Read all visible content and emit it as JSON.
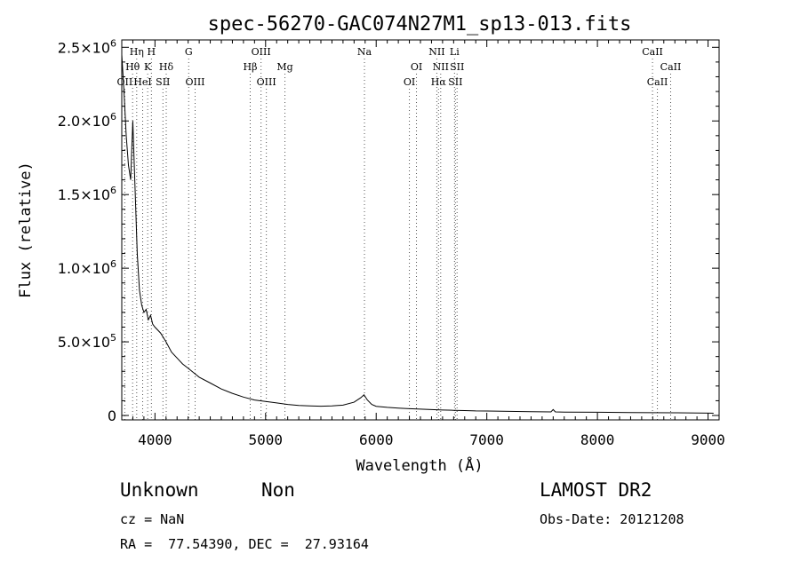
{
  "chart_data": {
    "type": "line",
    "title": "spec-56270-GAC074N27M1_sp13-013.fits",
    "xlabel": "Wavelength (Å)",
    "ylabel": "Flux (relative)",
    "xlim": [
      3700,
      9100
    ],
    "ylim": [
      -30000,
      2550000
    ],
    "xticks": [
      {
        "value": 4000,
        "label": "4000"
      },
      {
        "value": 5000,
        "label": "5000"
      },
      {
        "value": 6000,
        "label": "6000"
      },
      {
        "value": 7000,
        "label": "7000"
      },
      {
        "value": 8000,
        "label": "8000"
      },
      {
        "value": 9000,
        "label": "9000"
      }
    ],
    "yticks": [
      {
        "value": 0,
        "mant": "0",
        "exp": ""
      },
      {
        "value": 500000,
        "mant": "5.0×10",
        "exp": "5"
      },
      {
        "value": 1000000,
        "mant": "1.0×10",
        "exp": "6"
      },
      {
        "value": 1500000,
        "mant": "1.5×10",
        "exp": "6"
      },
      {
        "value": 2000000,
        "mant": "2.0×10",
        "exp": "6"
      },
      {
        "value": 2500000,
        "mant": "2.5×10",
        "exp": "6"
      }
    ],
    "grid": false,
    "series": [
      {
        "color": "#000000",
        "x": [
          3700,
          3720,
          3740,
          3760,
          3780,
          3800,
          3820,
          3840,
          3860,
          3880,
          3900,
          3920,
          3940,
          3960,
          3980,
          4000,
          4050,
          4100,
          4150,
          4200,
          4250,
          4300,
          4350,
          4400,
          4500,
          4600,
          4700,
          4800,
          4900,
          5000,
          5100,
          5200,
          5300,
          5400,
          5500,
          5600,
          5700,
          5800,
          5860,
          5890,
          5920,
          5960,
          6000,
          6100,
          6200,
          6300,
          6400,
          6500,
          6600,
          6700,
          6800,
          6900,
          7000,
          7200,
          7400,
          7580,
          7600,
          7620,
          7700,
          8000,
          8300,
          8500,
          8700,
          8900,
          9000,
          9050
        ],
        "y": [
          2450000,
          2200000,
          1900000,
          1700000,
          1600000,
          2000000,
          1550000,
          1100000,
          850000,
          750000,
          700000,
          720000,
          650000,
          680000,
          620000,
          600000,
          560000,
          500000,
          430000,
          390000,
          350000,
          320000,
          290000,
          260000,
          220000,
          180000,
          150000,
          125000,
          105000,
          95000,
          85000,
          75000,
          68000,
          65000,
          63000,
          65000,
          70000,
          90000,
          120000,
          140000,
          105000,
          75000,
          62000,
          55000,
          50000,
          46000,
          43000,
          40000,
          37000,
          35000,
          33000,
          31000,
          30000,
          28000,
          26000,
          24000,
          40000,
          24000,
          23000,
          22000,
          20000,
          19000,
          18000,
          17000,
          16000,
          15000
        ]
      }
    ],
    "line_labels": [
      {
        "label": "OII",
        "x": 3727,
        "row": 3
      },
      {
        "label": "Hθ",
        "x": 3798,
        "row": 2
      },
      {
        "label": "Hη",
        "x": 3835,
        "row": 1
      },
      {
        "label": "HeI",
        "x": 3889,
        "row": 3
      },
      {
        "label": "K",
        "x": 3934,
        "row": 2
      },
      {
        "label": "H",
        "x": 3968,
        "row": 1
      },
      {
        "label": "SII",
        "x": 4072,
        "row": 3
      },
      {
        "label": "Hδ",
        "x": 4102,
        "row": 2
      },
      {
        "label": "G",
        "x": 4305,
        "row": 1
      },
      {
        "label": "OIII",
        "x": 4363,
        "row": 3
      },
      {
        "label": "Hβ",
        "x": 4861,
        "row": 2
      },
      {
        "label": "OIII",
        "x": 4959,
        "row": 1
      },
      {
        "label": "OIII",
        "x": 5007,
        "row": 3
      },
      {
        "label": "Mg",
        "x": 5175,
        "row": 2
      },
      {
        "label": "Na",
        "x": 5894,
        "row": 1
      },
      {
        "label": "OI",
        "x": 6300,
        "row": 3
      },
      {
        "label": "OI",
        "x": 6364,
        "row": 2
      },
      {
        "label": "NII",
        "x": 6548,
        "row": 1
      },
      {
        "label": "Hα",
        "x": 6563,
        "row": 3
      },
      {
        "label": "NII",
        "x": 6583,
        "row": 2
      },
      {
        "label": "Li",
        "x": 6708,
        "row": 1
      },
      {
        "label": "SII",
        "x": 6716,
        "row": 3
      },
      {
        "label": "SII",
        "x": 6731,
        "row": 2
      },
      {
        "label": "CaII",
        "x": 8498,
        "row": 1
      },
      {
        "label": "CaII",
        "x": 8542,
        "row": 3
      },
      {
        "label": "CaII",
        "x": 8662,
        "row": 2
      }
    ]
  },
  "info": {
    "class": "Unknown",
    "subclass": "Non",
    "cz": "cz = NaN",
    "radec": "RA =  77.54390, DEC =  27.93164",
    "survey": "LAMOST DR2",
    "obsdate": "Obs-Date: 20121208"
  }
}
